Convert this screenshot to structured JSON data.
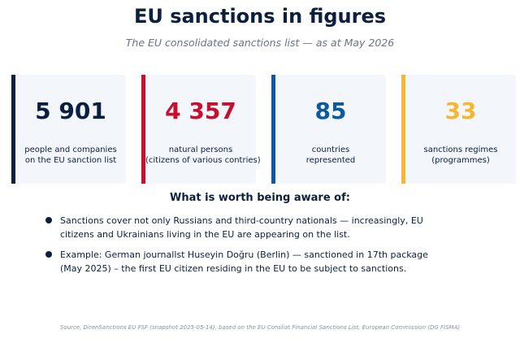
{
  "header": {
    "title": "EU sanctions in figures",
    "subtitle": "The EU consolidated sanctions list — as at May 2026"
  },
  "cards": [
    {
      "value": "5 901",
      "label_lines": [
        "people and companies",
        "on the EU sanction list"
      ],
      "color": "#0b1f3f"
    },
    {
      "value": "4 357",
      "label_lines": [
        "natural persons",
        "(citizens of various contries)"
      ],
      "color": "#c8102e"
    },
    {
      "value": "85",
      "label_lines": [
        "countries",
        "represented"
      ],
      "color": "#0b5aa0"
    },
    {
      "value": "33",
      "label_lines": [
        "sanctions regimes",
        "(programmes)"
      ],
      "color": "#f5b731"
    }
  ],
  "section": {
    "heading": "What is worth being aware of:",
    "bullets": [
      {
        "lines": [
          "Sanctions cover not only Russians and third-country nationals — increasingly, EU",
          "citizens and Ukrainians living in the EU are appearing on the list."
        ]
      },
      {
        "lines": [
          "Example: German journallst Huseyin Doğru (Berlin) — sanctioned in  17th package",
          "(May 2025) – the first EU citizen residing in the EU to be subject to sanctions."
        ]
      }
    ]
  },
  "footer": {
    "source": "Source, DirenSanctions  EU FSF (snapshot 2025-05-14), based on the EU Consliat Financial Sanctions List, European Commission (DG FISMA)"
  }
}
